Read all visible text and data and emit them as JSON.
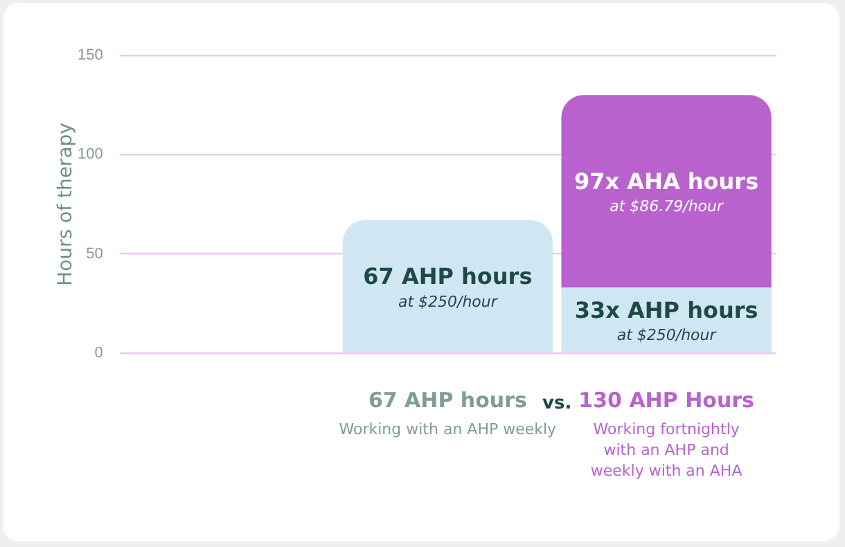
{
  "chart_data": {
    "type": "bar",
    "stacked": true,
    "ylabel": "Hours of therapy",
    "categories": [
      null,
      "67 AHP hours",
      "130 AHP Hours"
    ],
    "series": [
      {
        "color": "#d0e6f3",
        "values": [
          null,
          67,
          33
        ],
        "value_labels": [
          null,
          "67 AHP hours",
          "33x AHP hours"
        ]
      },
      {
        "color": "#b962ce",
        "values": [
          null,
          null,
          97
        ],
        "value_labels": [
          null,
          null,
          "97x AHA hours"
        ]
      }
    ],
    "ylim": [
      0,
      150
    ],
    "yticks": [
      0,
      50,
      100,
      150
    ],
    "grid": "y",
    "legend": false,
    "annotations": [
      "at $250/hour",
      "at $250/hour",
      "at $86.79/hour",
      "Working with an AHP weekly",
      "Working fortnightly\nwith an AHP and\nweekly with an AHA",
      "vs."
    ]
  }
}
